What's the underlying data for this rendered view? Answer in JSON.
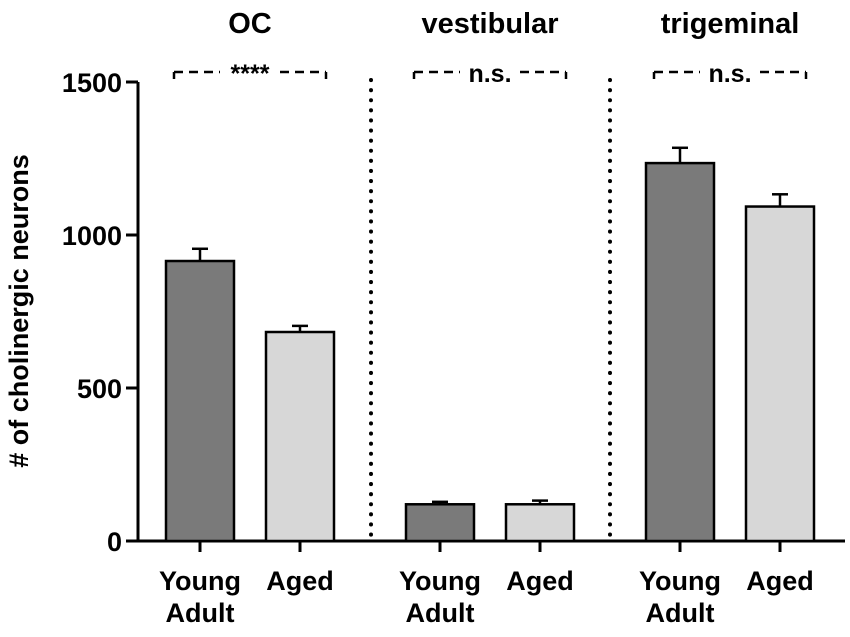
{
  "chart_data": {
    "type": "bar",
    "ylabel": "# of cholinergic neurons",
    "ylim": [
      0,
      1500
    ],
    "yticks": [
      0,
      500,
      1000,
      1500
    ],
    "groups": [
      {
        "title": "OC",
        "significance": "****",
        "bars": [
          {
            "category": "Young Adult",
            "label_lines": [
              "Young",
              "Adult"
            ],
            "value": 915,
            "error": 40,
            "color": "#7a7a7a"
          },
          {
            "category": "Aged",
            "label_lines": [
              "Aged"
            ],
            "value": 683,
            "error": 20,
            "color": "#d7d7d7"
          }
        ]
      },
      {
        "title": "vestibular",
        "significance": "n.s.",
        "bars": [
          {
            "category": "Young Adult",
            "label_lines": [
              "Young",
              "Adult"
            ],
            "value": 120,
            "error": 8,
            "color": "#7a7a7a"
          },
          {
            "category": "Aged",
            "label_lines": [
              "Aged"
            ],
            "value": 120,
            "error": 12,
            "color": "#d7d7d7"
          }
        ]
      },
      {
        "title": "trigeminal",
        "significance": "n.s.",
        "bars": [
          {
            "category": "Young Adult",
            "label_lines": [
              "Young",
              "Adult"
            ],
            "value": 1235,
            "error": 50,
            "color": "#7a7a7a"
          },
          {
            "category": "Aged",
            "label_lines": [
              "Aged"
            ],
            "value": 1093,
            "error": 40,
            "color": "#d7d7d7"
          }
        ]
      }
    ]
  }
}
